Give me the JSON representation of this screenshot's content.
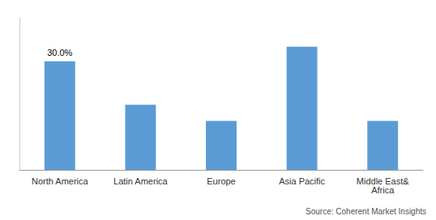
{
  "chart_data": {
    "type": "bar",
    "categories": [
      "North America",
      "Latin America",
      "Europe",
      "Asia Pacific",
      "Middle East&\nAfrica"
    ],
    "values": [
      30.0,
      18.0,
      13.5,
      34.0,
      13.5
    ],
    "value_labels": [
      "30.0%",
      null,
      null,
      null,
      null
    ],
    "color": "#5B9BD5",
    "ylim": [
      0,
      42
    ],
    "tick_labels": "x",
    "grid": false,
    "annotations": [
      "Source: Coherent Market Insights"
    ]
  }
}
